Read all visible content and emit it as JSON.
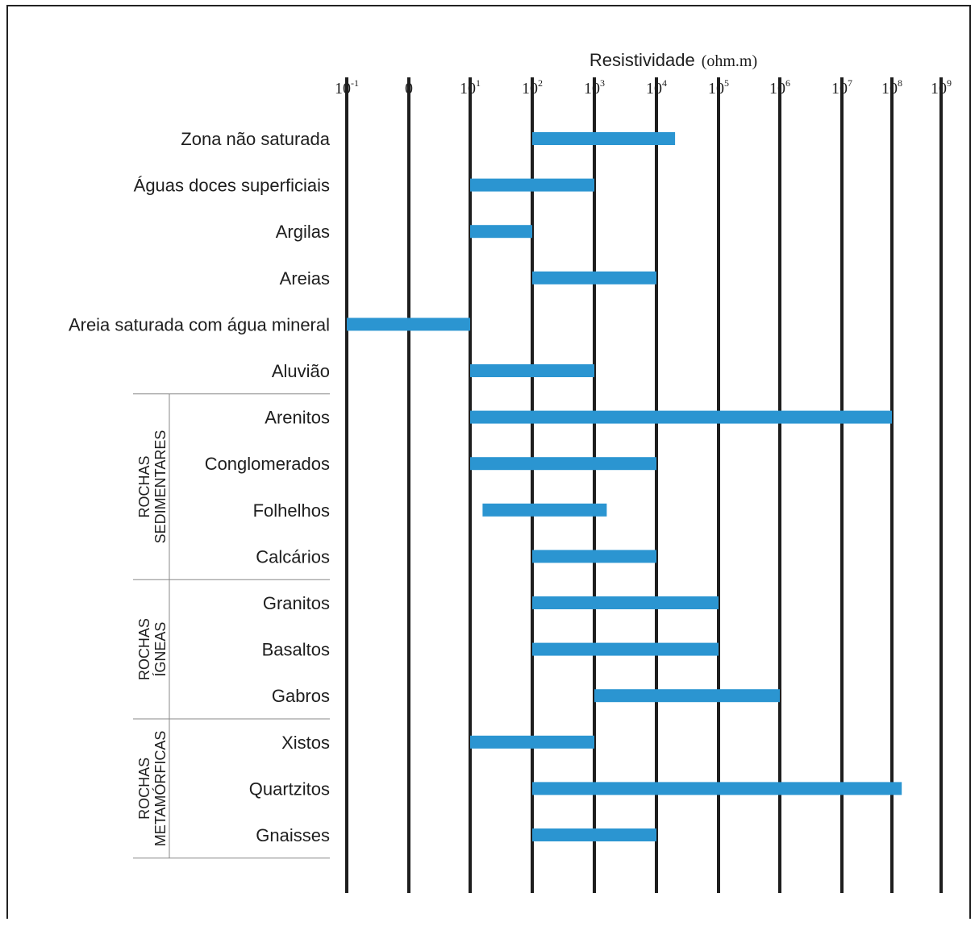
{
  "chart_data": {
    "type": "bar",
    "orientation": "horizontal-range",
    "xlabel": "Resistividade",
    "xunit": "(ohm.m)",
    "x_ticks": [
      {
        "base": "10",
        "exp": "-1"
      },
      {
        "base": "0",
        "exp": ""
      },
      {
        "base": "10",
        "exp": "1"
      },
      {
        "base": "10",
        "exp": "2"
      },
      {
        "base": "10",
        "exp": "3"
      },
      {
        "base": "10",
        "exp": "4"
      },
      {
        "base": "10",
        "exp": "5"
      },
      {
        "base": "10",
        "exp": "6"
      },
      {
        "base": "10",
        "exp": "7"
      },
      {
        "base": "10",
        "exp": "8"
      },
      {
        "base": "10",
        "exp": "9"
      }
    ],
    "bar_color": "#2b95d1",
    "gridline_color": "#1e1e1e",
    "categories": [
      "Zona não saturada",
      "Águas doces superficiais",
      "Argilas",
      "Areias",
      "Areia saturada com água mineral",
      "Aluvião",
      "Arenitos",
      "Conglomerados",
      "Folhelhos",
      "Calcários",
      "Granitos",
      "Basaltos",
      "Gabros",
      "Xistos",
      "Quartzitos",
      "Gnaisses"
    ],
    "ranges": [
      [
        2,
        4.3
      ],
      [
        1,
        3
      ],
      [
        1,
        2
      ],
      [
        2,
        4
      ],
      [
        -1,
        1
      ],
      [
        1,
        3
      ],
      [
        1,
        8
      ],
      [
        1,
        4
      ],
      [
        1.2,
        3.2
      ],
      [
        2,
        4
      ],
      [
        2,
        5
      ],
      [
        2,
        5
      ],
      [
        3,
        6
      ],
      [
        1,
        3
      ],
      [
        2,
        8.2
      ],
      [
        2,
        4
      ]
    ],
    "groups": [
      {
        "lines": [
          "ROCHAS",
          "SEDIMENTARES"
        ],
        "start": 6,
        "end": 9
      },
      {
        "lines": [
          "ROCHAS",
          "ÍGNEAS"
        ],
        "start": 10,
        "end": 12
      },
      {
        "lines": [
          "ROCHAS",
          "METAMÓRFICAS"
        ],
        "start": 13,
        "end": 15
      }
    ]
  }
}
